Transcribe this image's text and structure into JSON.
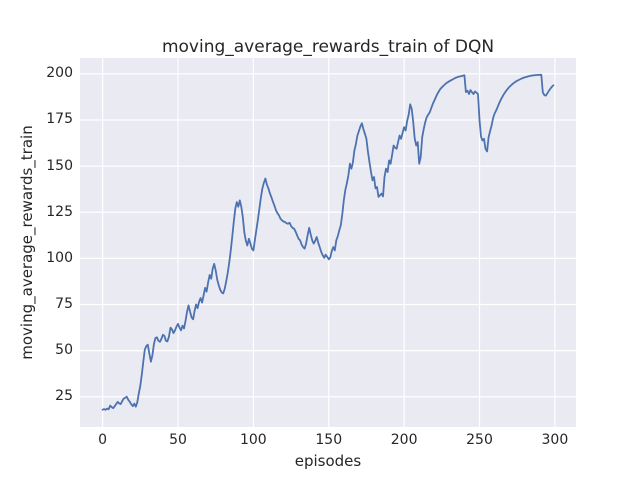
{
  "chart_data": {
    "type": "line",
    "title": "moving_average_rewards_train of DQN",
    "xlabel": "episodes",
    "ylabel": "moving_average_rewards_train",
    "xlim": [
      -15,
      314
    ],
    "ylim": [
      8.6,
      208.6
    ],
    "xticks": [
      0,
      50,
      100,
      150,
      200,
      250,
      300
    ],
    "yticks": [
      25,
      50,
      75,
      100,
      125,
      150,
      175,
      200
    ],
    "grid": true,
    "legend": false,
    "style": {
      "figure_bg": "#ffffff",
      "axes_bg": "#eaeaf2",
      "grid_color": "#ffffff",
      "text_color": "#262626",
      "line_color": "#4c72b0"
    },
    "series": [
      {
        "name": "moving_average_rewards_train",
        "color": "#4c72b0",
        "points": [
          [
            0,
            18
          ],
          [
            1,
            18.3
          ],
          [
            2,
            17.9
          ],
          [
            3,
            18.6
          ],
          [
            4,
            18.2
          ],
          [
            5,
            20.2
          ],
          [
            6,
            19.4
          ],
          [
            7,
            18.8
          ],
          [
            8,
            19.9
          ],
          [
            10,
            22.2
          ],
          [
            11,
            21.4
          ],
          [
            12,
            21.0
          ],
          [
            13,
            22.6
          ],
          [
            14,
            24.0
          ],
          [
            16,
            25.0
          ],
          [
            17,
            23.4
          ],
          [
            18,
            22.2
          ],
          [
            19,
            20.9
          ],
          [
            20,
            19.9
          ],
          [
            21,
            21.3
          ],
          [
            22,
            19.6
          ],
          [
            23,
            22.0
          ],
          [
            24,
            26.8
          ],
          [
            25,
            31
          ],
          [
            26,
            37
          ],
          [
            27,
            44
          ],
          [
            28,
            50.5
          ],
          [
            29,
            52.5
          ],
          [
            30,
            53.2
          ],
          [
            31,
            48.5
          ],
          [
            32,
            44
          ],
          [
            33,
            47.5
          ],
          [
            34,
            53.5
          ],
          [
            35,
            56.8
          ],
          [
            36,
            57.2
          ],
          [
            37,
            55.4
          ],
          [
            38,
            54.8
          ],
          [
            39,
            56.4
          ],
          [
            40,
            58.6
          ],
          [
            41,
            58.0
          ],
          [
            42,
            55.4
          ],
          [
            43,
            55.0
          ],
          [
            44,
            57.5
          ],
          [
            45,
            62.5
          ],
          [
            46,
            61.5
          ],
          [
            47,
            59.5
          ],
          [
            48,
            61.0
          ],
          [
            49,
            63.0
          ],
          [
            50,
            64.5
          ],
          [
            51,
            62.5
          ],
          [
            52,
            61.0
          ],
          [
            53,
            63.5
          ],
          [
            54,
            62.0
          ],
          [
            55,
            66.0
          ],
          [
            56,
            71.0
          ],
          [
            57,
            74.5
          ],
          [
            58,
            71.0
          ],
          [
            59,
            68.0
          ],
          [
            60,
            67.0
          ],
          [
            61,
            71.5
          ],
          [
            62,
            75.0
          ],
          [
            63,
            73.0
          ],
          [
            64,
            76.5
          ],
          [
            65,
            78.5
          ],
          [
            66,
            76.0
          ],
          [
            67,
            80.0
          ],
          [
            68,
            84.0
          ],
          [
            69,
            82.0
          ],
          [
            70,
            87.0
          ],
          [
            71,
            91.0
          ],
          [
            72,
            89.0
          ],
          [
            73,
            94.5
          ],
          [
            74,
            97.0
          ],
          [
            75,
            93.5
          ],
          [
            76,
            88.5
          ],
          [
            77,
            85.5
          ],
          [
            78,
            83.0
          ],
          [
            79,
            81.5
          ],
          [
            80,
            81.0
          ],
          [
            81,
            83.5
          ],
          [
            82,
            87.5
          ],
          [
            83,
            92.0
          ],
          [
            84,
            98.0
          ],
          [
            85,
            104.5
          ],
          [
            86,
            112.0
          ],
          [
            87,
            120.0
          ],
          [
            88,
            127.0
          ],
          [
            89,
            130.5
          ],
          [
            90,
            128.0
          ],
          [
            91,
            131.4
          ],
          [
            92,
            128.0
          ],
          [
            93,
            122.4
          ],
          [
            94,
            114.2
          ],
          [
            95,
            109.7
          ],
          [
            96,
            107.0
          ],
          [
            97,
            110.6
          ],
          [
            98,
            108.0
          ],
          [
            99,
            105.2
          ],
          [
            100,
            104.3
          ],
          [
            101,
            110.0
          ],
          [
            102,
            115.5
          ],
          [
            103,
            121.0
          ],
          [
            104,
            127.0
          ],
          [
            105,
            133.0
          ],
          [
            106,
            138.0
          ],
          [
            107,
            141.0
          ],
          [
            108,
            143.3
          ],
          [
            109,
            140.0
          ],
          [
            110,
            137.9
          ],
          [
            111,
            135.1
          ],
          [
            112,
            133.0
          ],
          [
            113,
            130.6
          ],
          [
            114,
            128.5
          ],
          [
            115,
            126.0
          ],
          [
            116,
            124.5
          ],
          [
            117,
            123.3
          ],
          [
            118,
            121.5
          ],
          [
            119,
            120.6
          ],
          [
            120,
            120.0
          ],
          [
            121,
            119.7
          ],
          [
            122,
            119.0
          ],
          [
            123,
            118.8
          ],
          [
            124,
            119.3
          ],
          [
            125,
            117.5
          ],
          [
            126,
            116.5
          ],
          [
            127,
            116.1
          ],
          [
            128,
            114.5
          ],
          [
            129,
            112.5
          ],
          [
            130,
            110.6
          ],
          [
            131,
            109.8
          ],
          [
            132,
            107.5
          ],
          [
            133,
            106.1
          ],
          [
            134,
            105.3
          ],
          [
            135,
            108.0
          ],
          [
            136,
            112.5
          ],
          [
            137,
            116.5
          ],
          [
            138,
            113.0
          ],
          [
            139,
            109.8
          ],
          [
            140,
            108.0
          ],
          [
            141,
            109.5
          ],
          [
            142,
            111.6
          ],
          [
            143,
            108.5
          ],
          [
            144,
            106.1
          ],
          [
            145,
            103.5
          ],
          [
            146,
            101.7
          ],
          [
            147,
            100.3
          ],
          [
            148,
            102.0
          ],
          [
            149,
            100.8
          ],
          [
            150,
            99.5
          ],
          [
            151,
            100.5
          ],
          [
            152,
            104.0
          ],
          [
            153,
            106.1
          ],
          [
            154,
            104.3
          ],
          [
            155,
            109.8
          ],
          [
            156,
            112.0
          ],
          [
            157,
            115.2
          ],
          [
            158,
            118.0
          ],
          [
            159,
            124.0
          ],
          [
            160,
            131.4
          ],
          [
            161,
            137.0
          ],
          [
            162,
            140.5
          ],
          [
            163,
            145.0
          ],
          [
            164,
            151.3
          ],
          [
            165,
            148.6
          ],
          [
            166,
            152.0
          ],
          [
            167,
            158.5
          ],
          [
            168,
            162.0
          ],
          [
            169,
            166.6
          ],
          [
            170,
            169.0
          ],
          [
            171,
            171.5
          ],
          [
            172,
            173.2
          ],
          [
            173,
            170.0
          ],
          [
            174,
            167.5
          ],
          [
            175,
            164.8
          ],
          [
            176,
            157.6
          ],
          [
            177,
            152.0
          ],
          [
            178,
            146.8
          ],
          [
            179,
            142.3
          ],
          [
            180,
            144.1
          ],
          [
            181,
            138.0
          ],
          [
            182,
            138.7
          ],
          [
            183,
            133.3
          ],
          [
            184,
            134.2
          ],
          [
            185,
            135.1
          ],
          [
            186,
            133.6
          ],
          [
            187,
            144.1
          ],
          [
            188,
            148.6
          ],
          [
            189,
            146.8
          ],
          [
            190,
            153.1
          ],
          [
            191,
            151.3
          ],
          [
            192,
            156.0
          ],
          [
            193,
            161.2
          ],
          [
            194,
            160.0
          ],
          [
            195,
            159.4
          ],
          [
            196,
            163.0
          ],
          [
            197,
            166.6
          ],
          [
            198,
            164.8
          ],
          [
            199,
            168.0
          ],
          [
            200,
            171.1
          ],
          [
            201,
            169.3
          ],
          [
            202,
            174.3
          ],
          [
            203,
            178.0
          ],
          [
            204,
            183.5
          ],
          [
            205,
            181.0
          ],
          [
            206,
            174.0
          ],
          [
            207,
            165.0
          ],
          [
            208,
            161.2
          ],
          [
            209,
            163.0
          ],
          [
            210,
            151.3
          ],
          [
            211,
            154.9
          ],
          [
            212,
            165.7
          ],
          [
            213,
            170.0
          ],
          [
            214,
            173.8
          ],
          [
            215,
            176.5
          ],
          [
            216,
            178.0
          ],
          [
            217,
            179.2
          ],
          [
            218,
            181.5
          ],
          [
            219,
            183.7
          ],
          [
            220,
            185.5
          ],
          [
            222,
            189.1
          ],
          [
            224,
            191.8
          ],
          [
            226,
            193.5
          ],
          [
            228,
            195.0
          ],
          [
            230,
            196.0
          ],
          [
            232,
            196.9
          ],
          [
            234,
            197.8
          ],
          [
            236,
            198.4
          ],
          [
            238,
            198.8
          ],
          [
            240,
            199.2
          ],
          [
            241,
            190.1
          ],
          [
            242,
            190.9
          ],
          [
            243,
            189.1
          ],
          [
            244,
            191.2
          ],
          [
            245,
            190.0
          ],
          [
            246,
            189.1
          ],
          [
            247,
            190.5
          ],
          [
            248,
            189.8
          ],
          [
            249,
            189.1
          ],
          [
            250,
            175.0
          ],
          [
            251,
            166.0
          ],
          [
            252,
            163.9
          ],
          [
            253,
            164.8
          ],
          [
            254,
            159.4
          ],
          [
            255,
            158.0
          ],
          [
            256,
            165.7
          ],
          [
            257,
            169.0
          ],
          [
            258,
            172.0
          ],
          [
            259,
            176.0
          ],
          [
            260,
            178.5
          ],
          [
            261,
            180.1
          ],
          [
            262,
            182.0
          ],
          [
            263,
            184.0
          ],
          [
            264,
            185.8
          ],
          [
            265,
            187.3
          ],
          [
            266,
            188.7
          ],
          [
            267,
            190.0
          ],
          [
            268,
            191.2
          ],
          [
            270,
            193.1
          ],
          [
            272,
            194.6
          ],
          [
            274,
            195.8
          ],
          [
            276,
            196.7
          ],
          [
            278,
            197.5
          ],
          [
            280,
            198.1
          ],
          [
            282,
            198.6
          ],
          [
            284,
            199.0
          ],
          [
            286,
            199.2
          ],
          [
            288,
            199.4
          ],
          [
            290,
            199.5
          ],
          [
            291,
            199.5
          ],
          [
            292,
            190.0
          ],
          [
            293,
            188.5
          ],
          [
            294,
            188.2
          ],
          [
            295,
            189.5
          ],
          [
            296,
            190.8
          ],
          [
            297,
            192.0
          ],
          [
            298,
            193.0
          ],
          [
            299,
            193.8
          ]
        ]
      }
    ]
  }
}
